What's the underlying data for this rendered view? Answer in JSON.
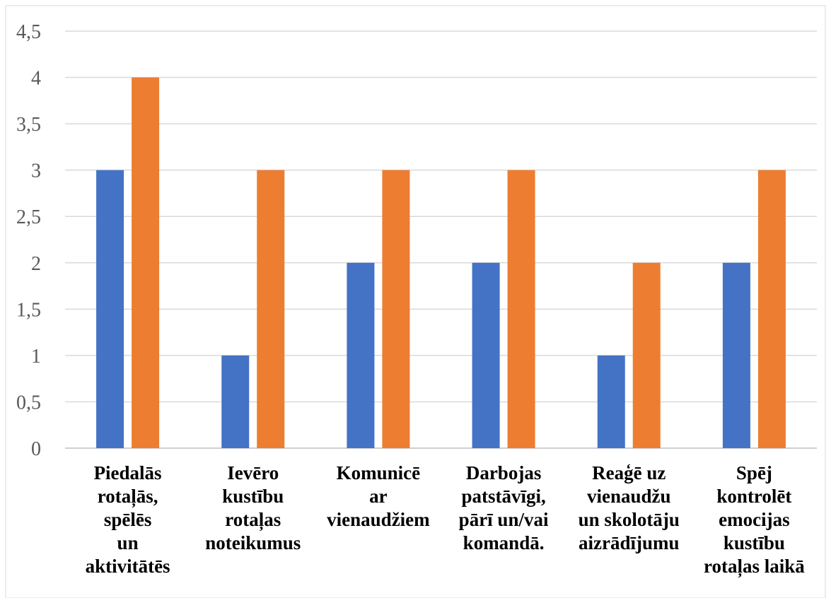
{
  "chart_data": {
    "type": "bar",
    "categories": [
      [
        "Piedalās",
        "rotaļās,",
        "spēlēs",
        "un",
        "aktivitātēs"
      ],
      [
        "Ievēro",
        "kustību",
        "rotaļas",
        "noteikumus"
      ],
      [
        "Komunicē",
        "ar",
        "vienaudžiem"
      ],
      [
        "Darbojas",
        "patstāvīgi,",
        "pārī un/vai",
        "komandā."
      ],
      [
        "Reaģē uz",
        "vienaudžu",
        "un skolotāju",
        "aizrādījumu"
      ],
      [
        "Spēj",
        "kontrolēt",
        "emocijas",
        "kustību",
        "rotaļas laikā"
      ]
    ],
    "series": [
      {
        "values": [
          3,
          1,
          2,
          2,
          1,
          2
        ],
        "color": "#4472C4"
      },
      {
        "values": [
          4,
          3,
          3,
          3,
          2,
          3
        ],
        "color": "#ED7D31"
      }
    ],
    "ylim": [
      0,
      4.5
    ],
    "yticks": [
      "0",
      "0,5",
      "1",
      "1,5",
      "2",
      "2,5",
      "3",
      "3,5",
      "4",
      "4,5"
    ],
    "grid": true,
    "legend": "none",
    "title": "",
    "xlabel": "",
    "ylabel": ""
  }
}
